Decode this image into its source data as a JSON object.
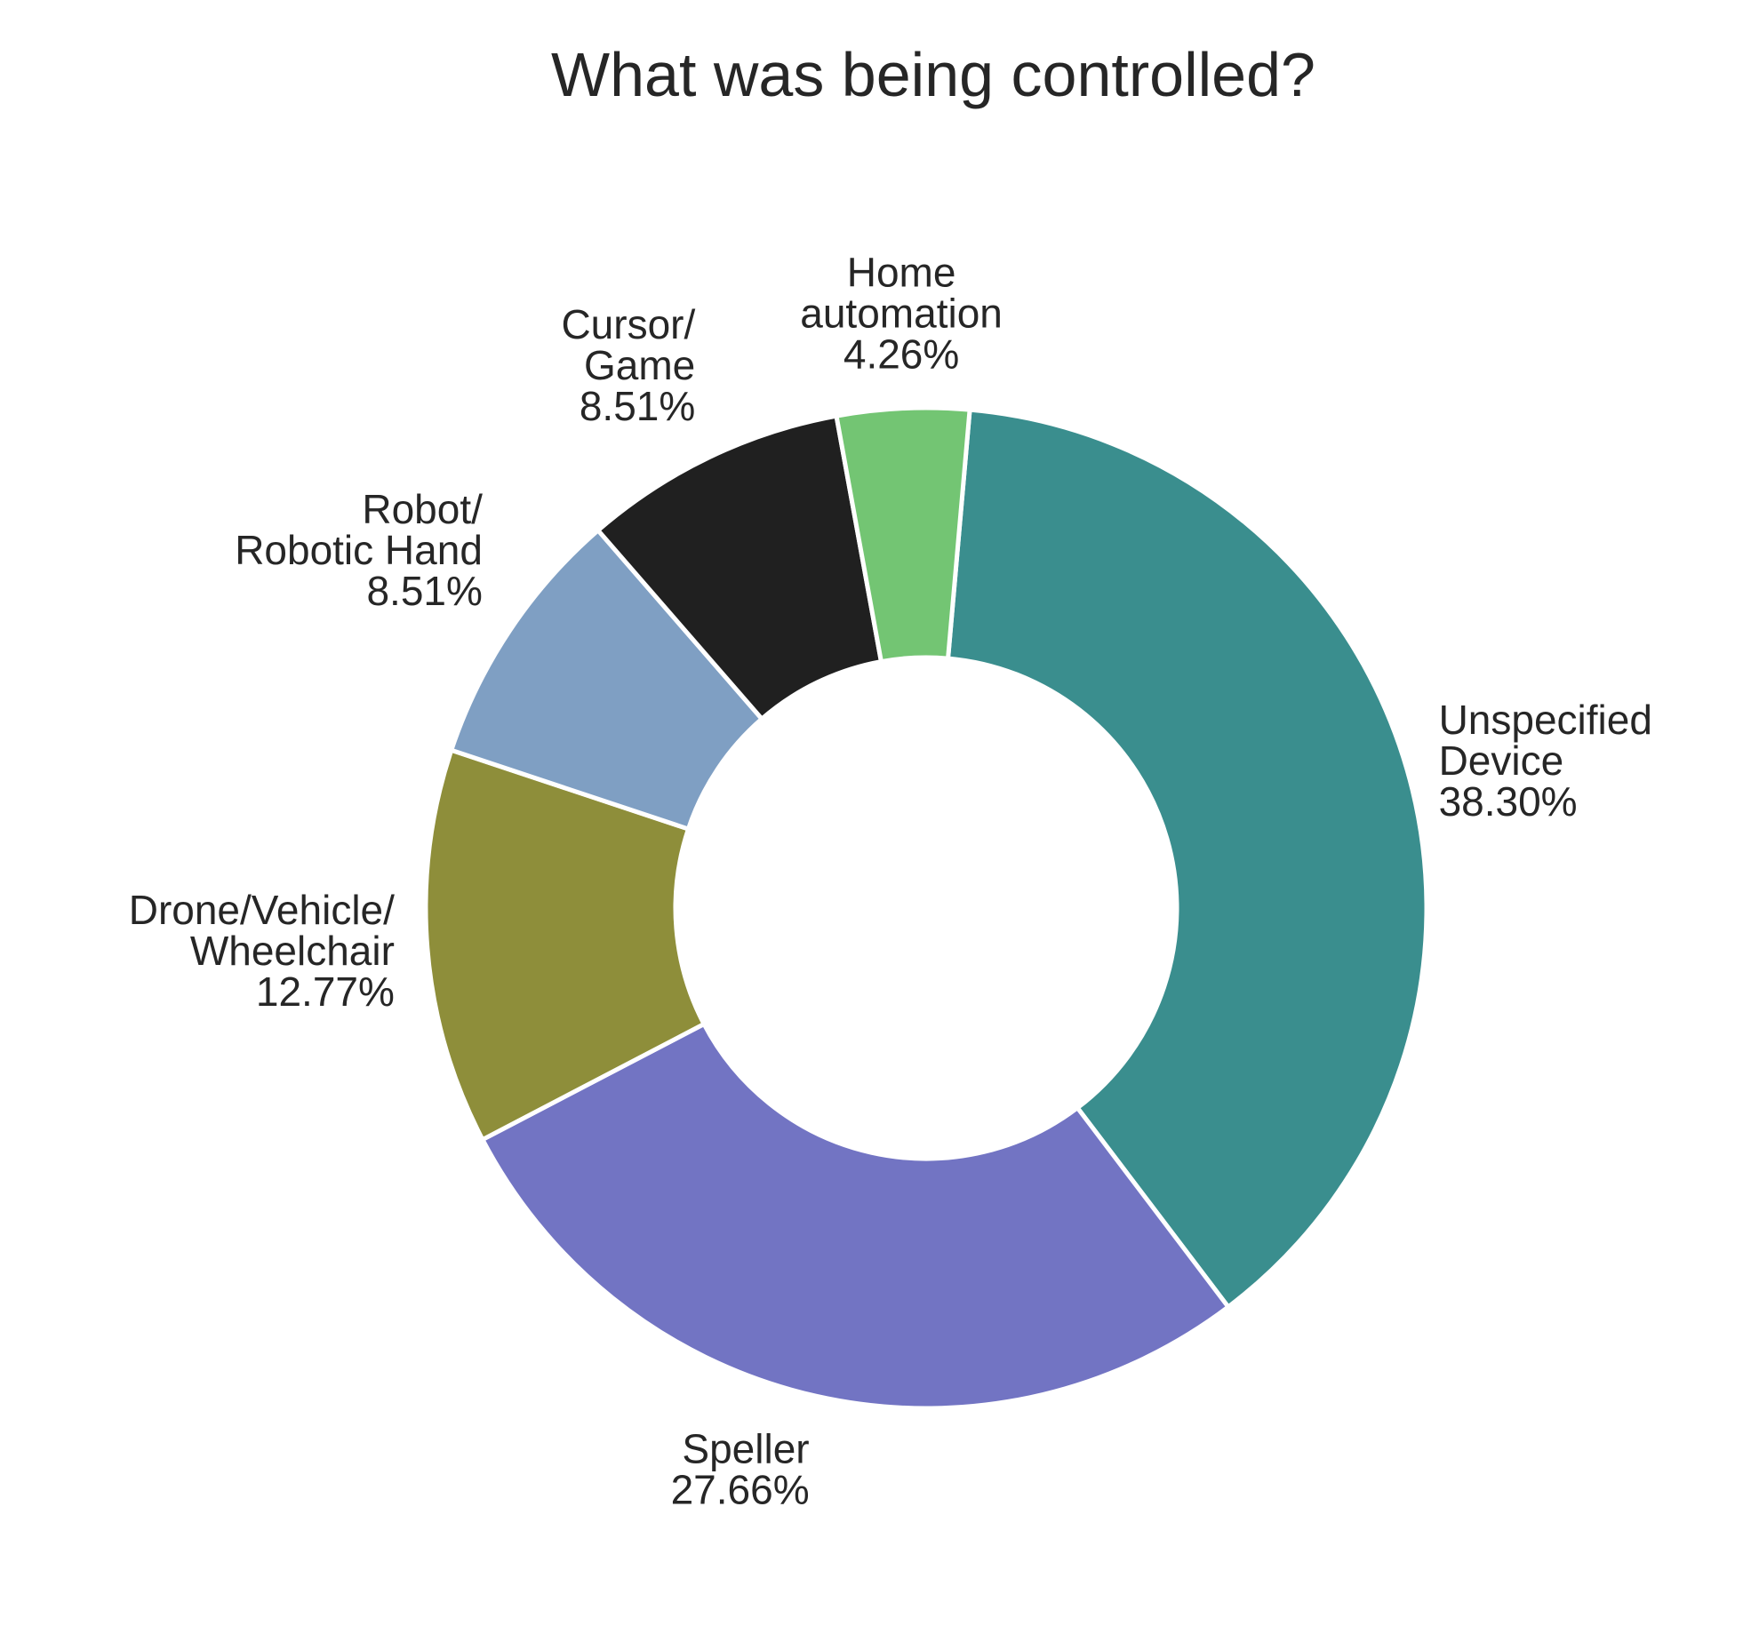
{
  "chart_data": {
    "type": "pie",
    "title": "What was being controlled?",
    "donut": true,
    "slices": [
      {
        "label_lines": [
          "Unspecified",
          "Device"
        ],
        "pct_text": "38.30%",
        "value": 38.3,
        "color": "#3a8e8e"
      },
      {
        "label_lines": [
          "Speller"
        ],
        "pct_text": "27.66%",
        "value": 27.66,
        "color": "#7274c3"
      },
      {
        "label_lines": [
          "Drone/Vehicle/",
          "Wheelchair"
        ],
        "pct_text": "12.77%",
        "value": 12.77,
        "color": "#8e8e3a"
      },
      {
        "label_lines": [
          "Robot/",
          "Robotic Hand"
        ],
        "pct_text": "8.51%",
        "value": 8.51,
        "color": "#7f9fc3"
      },
      {
        "label_lines": [
          "Cursor/",
          "Game"
        ],
        "pct_text": "8.51%",
        "value": 8.51,
        "color": "#202020"
      },
      {
        "label_lines": [
          "Home",
          "automation"
        ],
        "pct_text": "4.26%",
        "value": 4.26,
        "color": "#73c573"
      }
    ]
  }
}
